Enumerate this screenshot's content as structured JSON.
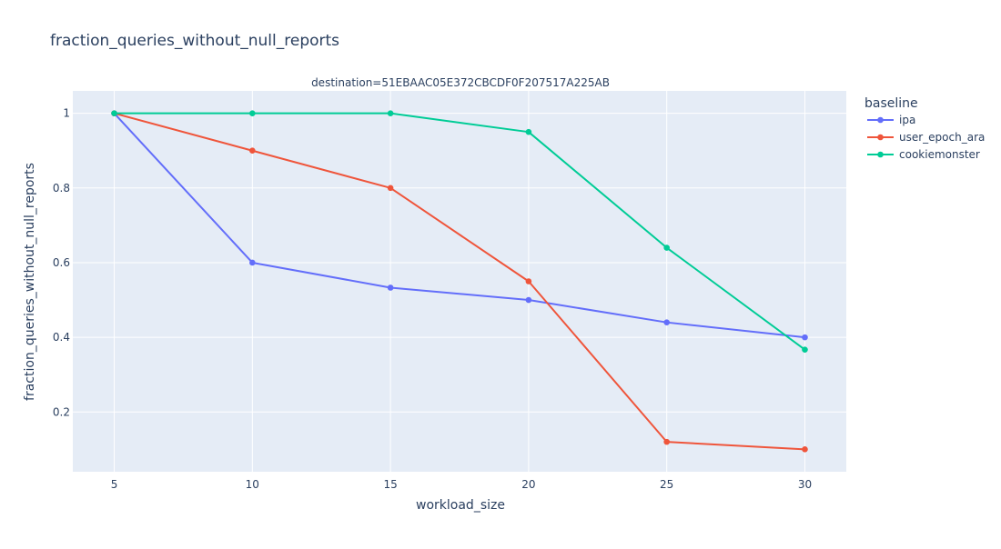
{
  "chart_data": {
    "type": "line",
    "title": "fraction_queries_without_null_reports",
    "subtitle": "destination=51EBAAC05E372CBCDF0F207517A225AB",
    "xlabel": "workload_size",
    "ylabel": "fraction_queries_without_null_reports",
    "x": [
      5,
      10,
      15,
      20,
      25,
      30
    ],
    "x_ticks": [
      5,
      10,
      15,
      20,
      25,
      30
    ],
    "y_ticks": [
      0.2,
      0.4,
      0.6,
      0.8,
      1
    ],
    "y_tick_labels": [
      "0.2",
      "0.4",
      "0.6",
      "0.8",
      "1"
    ],
    "xlim": [
      3.5,
      31.5
    ],
    "ylim": [
      0.04,
      1.06
    ],
    "grid": true,
    "legend_title": "baseline",
    "legend_position": "right",
    "series": [
      {
        "name": "ipa",
        "color": "#636efa",
        "values": [
          1.0,
          0.6,
          0.533,
          0.5,
          0.44,
          0.4
        ]
      },
      {
        "name": "user_epoch_ara",
        "color": "#ef553b",
        "values": [
          1.0,
          0.9,
          0.8,
          0.55,
          0.12,
          0.1
        ]
      },
      {
        "name": "cookiemonster",
        "color": "#00cc96",
        "values": [
          1.0,
          1.0,
          1.0,
          0.95,
          0.64,
          0.367
        ]
      }
    ],
    "plot_background": "#e5ecf6",
    "grid_color": "#ffffff",
    "text_color": "#2a3f5f"
  }
}
